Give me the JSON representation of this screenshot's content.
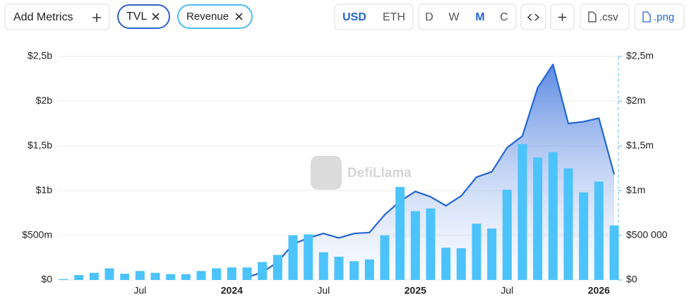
{
  "toolbar": {
    "add_metrics": "Add Metrics",
    "metrics": [
      "TVL",
      "Revenue"
    ],
    "currencies": [
      "USD",
      "ETH"
    ],
    "periods": [
      "D",
      "W",
      "M",
      "C"
    ],
    "downloads": [
      ".csv",
      ".png"
    ]
  },
  "watermark": "DefiLlama",
  "chart_data": {
    "type": "bar",
    "categories": [
      null,
      null,
      null,
      null,
      null,
      "Jul",
      null,
      null,
      null,
      null,
      null,
      "2024",
      null,
      null,
      null,
      null,
      null,
      "Jul",
      null,
      null,
      null,
      null,
      null,
      "2025",
      null,
      null,
      null,
      null,
      null,
      "Jul",
      null,
      null,
      null,
      null,
      null,
      "2026",
      null
    ],
    "series": [
      {
        "name": "TVL",
        "type": "line",
        "color": "#2266d3",
        "axis": "y",
        "values": [
          null,
          null,
          null,
          null,
          null,
          null,
          null,
          null,
          null,
          null,
          null,
          null,
          30000000,
          85000000,
          200000000,
          400000000,
          470000000,
          520000000,
          470000000,
          520000000,
          530000000,
          730000000,
          880000000,
          990000000,
          930000000,
          830000000,
          940000000,
          1150000000,
          1210000000,
          1480000000,
          1610000000,
          2150000000,
          2410000000,
          1750000000,
          1770000000,
          1810000000,
          1180000000
        ]
      },
      {
        "name": "Revenue",
        "type": "bar",
        "color": "#4cc3fb",
        "axis": "y2",
        "values": [
          10000,
          55000,
          80000,
          130000,
          70000,
          100000,
          80000,
          65000,
          65000,
          100000,
          130000,
          140000,
          140000,
          200000,
          280000,
          500000,
          510000,
          310000,
          260000,
          210000,
          230000,
          500000,
          1040000,
          770000,
          800000,
          360000,
          355000,
          630000,
          575000,
          1010000,
          1520000,
          1370000,
          1430000,
          1250000,
          980000,
          1100000,
          610000
        ]
      }
    ],
    "ylim": [
      0,
      2500000000
    ],
    "yticks": [
      {
        "value": 0,
        "label": "$0"
      },
      {
        "value": 500000000,
        "label": "$500m"
      },
      {
        "value": 1000000000,
        "label": "$1b"
      },
      {
        "value": 1500000000,
        "label": "$1,5b"
      },
      {
        "value": 2000000000,
        "label": "$2b"
      },
      {
        "value": 2500000000,
        "label": "$2,5b"
      }
    ],
    "y2lim": [
      0,
      2500000
    ],
    "y2ticks": [
      {
        "value": 0,
        "label": "$0"
      },
      {
        "value": 500000,
        "label": "$500 000"
      },
      {
        "value": 1000000,
        "label": "$1m"
      },
      {
        "value": 1500000,
        "label": "$1,5m"
      },
      {
        "value": 2000000,
        "label": "$2m"
      },
      {
        "value": 2500000,
        "label": "$2,5m"
      }
    ],
    "grid": true
  }
}
